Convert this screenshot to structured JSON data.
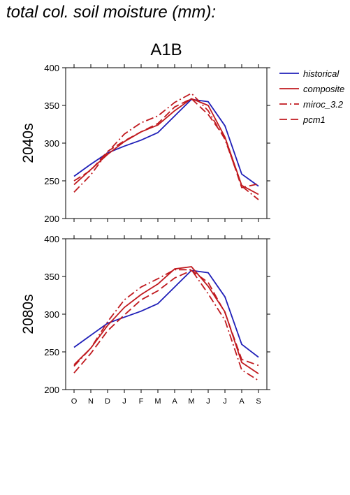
{
  "title": "total col. soil moisture (mm):",
  "chart_data": {
    "type": "line",
    "scenario": "A1B",
    "categories": [
      "O",
      "N",
      "D",
      "J",
      "F",
      "M",
      "A",
      "M",
      "J",
      "J",
      "A",
      "S"
    ],
    "ylim": [
      200,
      400
    ],
    "yticks": [
      200,
      250,
      300,
      350,
      400
    ],
    "legend_position": "right",
    "legend": [
      {
        "name": "historical",
        "color": "#1f1fb8",
        "dash": "solid"
      },
      {
        "name": "composite",
        "color": "#c0191e",
        "dash": "solid"
      },
      {
        "name": "miroc_3.2",
        "color": "#c0191e",
        "dash": "dashdot"
      },
      {
        "name": "pcm1",
        "color": "#c0191e",
        "dash": "dashed"
      }
    ],
    "panels": [
      {
        "label": "2040s",
        "series": [
          {
            "name": "historical",
            "values": [
              256,
              272,
              287,
              296,
              304,
              314,
              336,
              358,
              355,
              323,
              259,
              243
            ]
          },
          {
            "name": "composite",
            "values": [
              245,
              265,
              285,
              302,
              315,
              324,
              343,
              359,
              350,
              308,
              244,
              232
            ]
          },
          {
            "name": "miroc_3.2",
            "values": [
              235,
              258,
              288,
              312,
              327,
              336,
              354,
              366,
              343,
              305,
              243,
              225
            ]
          },
          {
            "name": "pcm1",
            "values": [
              250,
              264,
              289,
              303,
              315,
              326,
              348,
              359,
              338,
              307,
              241,
              246
            ]
          }
        ]
      },
      {
        "label": "2080s",
        "series": [
          {
            "name": "historical",
            "values": [
              256,
              272,
              288,
              296,
              304,
              314,
              336,
              358,
              355,
              323,
              260,
              243
            ]
          },
          {
            "name": "composite",
            "values": [
              233,
              255,
              285,
              309,
              326,
              340,
              360,
              363,
              337,
              303,
              236,
              221
            ]
          },
          {
            "name": "miroc_3.2",
            "values": [
              231,
              255,
              290,
              319,
              336,
              347,
              359,
              359,
              327,
              292,
              226,
              212
            ]
          },
          {
            "name": "pcm1",
            "values": [
              222,
              248,
              278,
              299,
              319,
              331,
              348,
              358,
              342,
              302,
              240,
              232
            ]
          }
        ]
      }
    ]
  }
}
